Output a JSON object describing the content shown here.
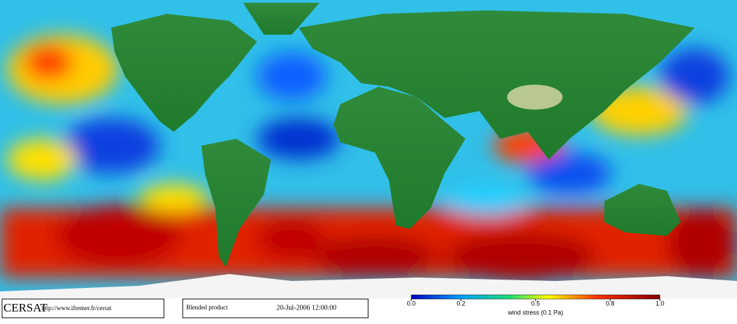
{
  "footer": {
    "logo": "CERSAT",
    "url": "http://www.ifremer.fr/cersat",
    "product": "Blended product",
    "date": "20-Jul-2006 12:00:00"
  },
  "colorbar": {
    "label": "wind stress (0.1 Pa)",
    "range": [
      0,
      1
    ],
    "ticks": [
      {
        "value": 0,
        "label": "0.0"
      },
      0.2,
      0.5,
      0.8,
      {
        "value": 1,
        "label": "1.0"
      }
    ]
  }
}
